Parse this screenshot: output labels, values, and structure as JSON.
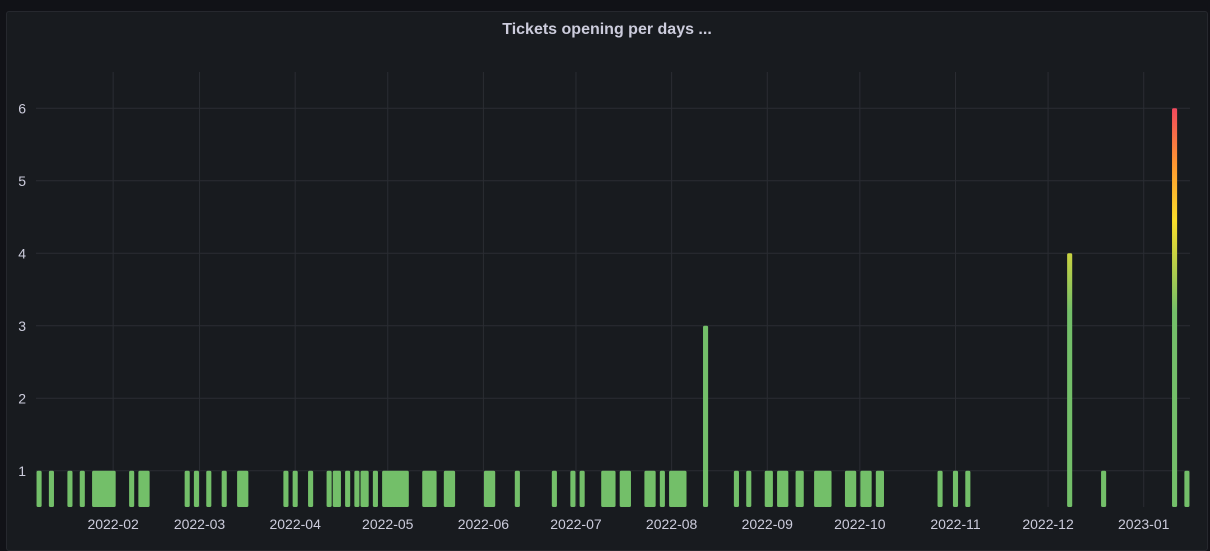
{
  "panel": {
    "title": "Tickets opening per days ..."
  },
  "chart_data": {
    "type": "bar",
    "title": "Tickets opening per days ...",
    "xlabel": "",
    "ylabel": "",
    "x_axis": "date",
    "xlim": [
      "2022-01-07",
      "2023-01-16"
    ],
    "ylim": [
      0.5,
      6.5
    ],
    "yticks": [
      1,
      2,
      3,
      4,
      5,
      6
    ],
    "xticks": [
      "2022-02",
      "2022-03",
      "2022-04",
      "2022-05",
      "2022-06",
      "2022-07",
      "2022-08",
      "2022-09",
      "2022-10",
      "2022-11",
      "2022-12",
      "2023-01"
    ],
    "grid": true,
    "bar_color_scheme": {
      "low": "#73bf69",
      "mid": "#fade2a",
      "high": "#f2495c"
    },
    "points": [
      {
        "x": "2022-01-08",
        "y": 1
      },
      {
        "x": "2022-01-12",
        "y": 1
      },
      {
        "x": "2022-01-18",
        "y": 1
      },
      {
        "x": "2022-01-22",
        "y": 1
      },
      {
        "x": "2022-01-26",
        "y": 1
      },
      {
        "x": "2022-01-27",
        "y": 1
      },
      {
        "x": "2022-01-28",
        "y": 1
      },
      {
        "x": "2022-01-29",
        "y": 1
      },
      {
        "x": "2022-01-30",
        "y": 1
      },
      {
        "x": "2022-01-31",
        "y": 1
      },
      {
        "x": "2022-02-01",
        "y": 1
      },
      {
        "x": "2022-02-07",
        "y": 1
      },
      {
        "x": "2022-02-10",
        "y": 1
      },
      {
        "x": "2022-02-11",
        "y": 1
      },
      {
        "x": "2022-02-12",
        "y": 1
      },
      {
        "x": "2022-02-25",
        "y": 1
      },
      {
        "x": "2022-02-28",
        "y": 1
      },
      {
        "x": "2022-03-04",
        "y": 1
      },
      {
        "x": "2022-03-09",
        "y": 1
      },
      {
        "x": "2022-03-14",
        "y": 1
      },
      {
        "x": "2022-03-15",
        "y": 1
      },
      {
        "x": "2022-03-16",
        "y": 1
      },
      {
        "x": "2022-03-29",
        "y": 1
      },
      {
        "x": "2022-04-01",
        "y": 1
      },
      {
        "x": "2022-04-06",
        "y": 1
      },
      {
        "x": "2022-04-12",
        "y": 1
      },
      {
        "x": "2022-04-14",
        "y": 1
      },
      {
        "x": "2022-04-15",
        "y": 1
      },
      {
        "x": "2022-04-18",
        "y": 1
      },
      {
        "x": "2022-04-21",
        "y": 1
      },
      {
        "x": "2022-04-23",
        "y": 1
      },
      {
        "x": "2022-04-24",
        "y": 1
      },
      {
        "x": "2022-04-27",
        "y": 1
      },
      {
        "x": "2022-04-30",
        "y": 1
      },
      {
        "x": "2022-05-01",
        "y": 1
      },
      {
        "x": "2022-05-02",
        "y": 1
      },
      {
        "x": "2022-05-03",
        "y": 1
      },
      {
        "x": "2022-05-04",
        "y": 1
      },
      {
        "x": "2022-05-05",
        "y": 1
      },
      {
        "x": "2022-05-06",
        "y": 1
      },
      {
        "x": "2022-05-07",
        "y": 1
      },
      {
        "x": "2022-05-13",
        "y": 1
      },
      {
        "x": "2022-05-14",
        "y": 1
      },
      {
        "x": "2022-05-15",
        "y": 1
      },
      {
        "x": "2022-05-16",
        "y": 1
      },
      {
        "x": "2022-05-20",
        "y": 1
      },
      {
        "x": "2022-05-21",
        "y": 1
      },
      {
        "x": "2022-05-22",
        "y": 1
      },
      {
        "x": "2022-06-02",
        "y": 1
      },
      {
        "x": "2022-06-03",
        "y": 1
      },
      {
        "x": "2022-06-04",
        "y": 1
      },
      {
        "x": "2022-06-12",
        "y": 1
      },
      {
        "x": "2022-06-24",
        "y": 1
      },
      {
        "x": "2022-06-30",
        "y": 1
      },
      {
        "x": "2022-07-03",
        "y": 1
      },
      {
        "x": "2022-07-10",
        "y": 1
      },
      {
        "x": "2022-07-11",
        "y": 1
      },
      {
        "x": "2022-07-12",
        "y": 1
      },
      {
        "x": "2022-07-13",
        "y": 1
      },
      {
        "x": "2022-07-16",
        "y": 1
      },
      {
        "x": "2022-07-17",
        "y": 1
      },
      {
        "x": "2022-07-18",
        "y": 1
      },
      {
        "x": "2022-07-24",
        "y": 1
      },
      {
        "x": "2022-07-25",
        "y": 1
      },
      {
        "x": "2022-07-26",
        "y": 1
      },
      {
        "x": "2022-07-29",
        "y": 1
      },
      {
        "x": "2022-08-01",
        "y": 1
      },
      {
        "x": "2022-08-02",
        "y": 1
      },
      {
        "x": "2022-08-03",
        "y": 1
      },
      {
        "x": "2022-08-04",
        "y": 1
      },
      {
        "x": "2022-08-05",
        "y": 1
      },
      {
        "x": "2022-08-12",
        "y": 3
      },
      {
        "x": "2022-08-22",
        "y": 1
      },
      {
        "x": "2022-08-26",
        "y": 1
      },
      {
        "x": "2022-09-01",
        "y": 1
      },
      {
        "x": "2022-09-02",
        "y": 1
      },
      {
        "x": "2022-09-05",
        "y": 1
      },
      {
        "x": "2022-09-06",
        "y": 1
      },
      {
        "x": "2022-09-07",
        "y": 1
      },
      {
        "x": "2022-09-11",
        "y": 1
      },
      {
        "x": "2022-09-12",
        "y": 1
      },
      {
        "x": "2022-09-17",
        "y": 1
      },
      {
        "x": "2022-09-18",
        "y": 1
      },
      {
        "x": "2022-09-19",
        "y": 1
      },
      {
        "x": "2022-09-20",
        "y": 1
      },
      {
        "x": "2022-09-21",
        "y": 1
      },
      {
        "x": "2022-09-27",
        "y": 1
      },
      {
        "x": "2022-09-28",
        "y": 1
      },
      {
        "x": "2022-09-29",
        "y": 1
      },
      {
        "x": "2022-10-02",
        "y": 1
      },
      {
        "x": "2022-10-03",
        "y": 1
      },
      {
        "x": "2022-10-04",
        "y": 1
      },
      {
        "x": "2022-10-07",
        "y": 1
      },
      {
        "x": "2022-10-08",
        "y": 1
      },
      {
        "x": "2022-10-27",
        "y": 1
      },
      {
        "x": "2022-11-01",
        "y": 1
      },
      {
        "x": "2022-11-05",
        "y": 1
      },
      {
        "x": "2022-12-08",
        "y": 4
      },
      {
        "x": "2022-12-19",
        "y": 1
      },
      {
        "x": "2023-01-11",
        "y": 6
      },
      {
        "x": "2023-01-15",
        "y": 1
      }
    ]
  }
}
